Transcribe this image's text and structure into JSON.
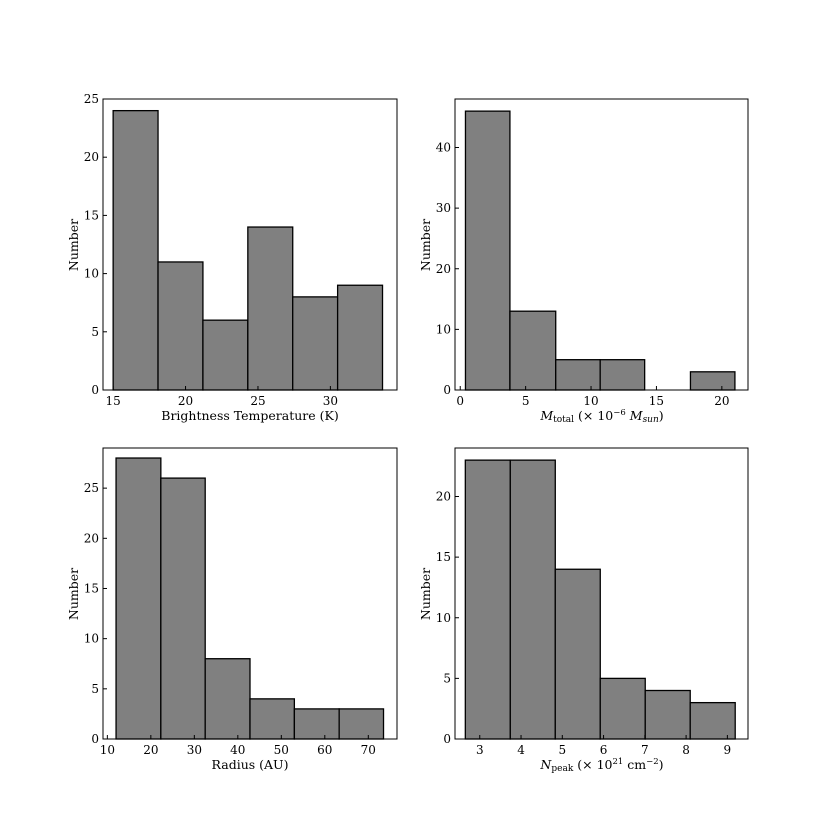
{
  "chart_data": [
    {
      "type": "bar",
      "histogram": true,
      "xlabel": "Brightness Temperature (K)",
      "ylabel": "Number",
      "bin_edges": [
        15.0,
        18.1,
        21.2,
        24.3,
        27.4,
        30.5,
        33.6
      ],
      "values": [
        24,
        11,
        6,
        14,
        8,
        9
      ],
      "xlim": [
        14.3,
        34.6
      ],
      "ylim": [
        0,
        25
      ],
      "xticks": [
        15,
        20,
        25,
        30
      ],
      "yticks": [
        0,
        5,
        10,
        15,
        20,
        25
      ],
      "bar_color": "#808080",
      "edge_color": "#000000",
      "grid": false
    },
    {
      "type": "bar",
      "histogram": true,
      "xlabel_parts": {
        "var": "M",
        "sub": "total",
        "open": " (× 10",
        "sup": "−6",
        "unit_var": " M",
        "unit_sub": "sun",
        "close": ")"
      },
      "ylabel": "Number",
      "bin_edges": [
        0.4,
        3.8,
        7.3,
        10.7,
        14.1,
        17.6,
        21.0
      ],
      "values": [
        46,
        13,
        5,
        5,
        0,
        3
      ],
      "xlim": [
        -0.4,
        22.0
      ],
      "ylim": [
        0,
        48
      ],
      "xticks": [
        0,
        5,
        10,
        15,
        20
      ],
      "yticks": [
        0,
        10,
        20,
        30,
        40
      ],
      "bar_color": "#808080",
      "edge_color": "#000000",
      "grid": false
    },
    {
      "type": "bar",
      "histogram": true,
      "xlabel": "Radius (AU)",
      "ylabel": "Number",
      "bin_edges": [
        12.0,
        22.3,
        32.5,
        42.8,
        53.0,
        63.3,
        73.5
      ],
      "values": [
        28,
        26,
        8,
        4,
        3,
        3
      ],
      "xlim": [
        9.0,
        76.6
      ],
      "ylim": [
        0,
        29
      ],
      "xticks": [
        10,
        20,
        30,
        40,
        50,
        60,
        70
      ],
      "yticks": [
        0,
        5,
        10,
        15,
        20,
        25
      ],
      "bar_color": "#808080",
      "edge_color": "#000000",
      "grid": false
    },
    {
      "type": "bar",
      "histogram": true,
      "xlabel_parts": {
        "var": "N",
        "sub": "peak",
        "open": " (× 10",
        "sup": "21",
        "unit": " cm",
        "unit_sup": "−2",
        "close": ")"
      },
      "ylabel": "Number",
      "bin_edges": [
        2.65,
        3.74,
        4.83,
        5.92,
        7.01,
        8.1,
        9.19
      ],
      "values": [
        23,
        23,
        14,
        5,
        4,
        3
      ],
      "xlim": [
        2.4,
        9.5
      ],
      "ylim": [
        0,
        24
      ],
      "xticks": [
        3,
        4,
        5,
        6,
        7,
        8,
        9
      ],
      "yticks": [
        0,
        5,
        10,
        15,
        20
      ],
      "bar_color": "#808080",
      "edge_color": "#000000",
      "grid": false
    }
  ]
}
